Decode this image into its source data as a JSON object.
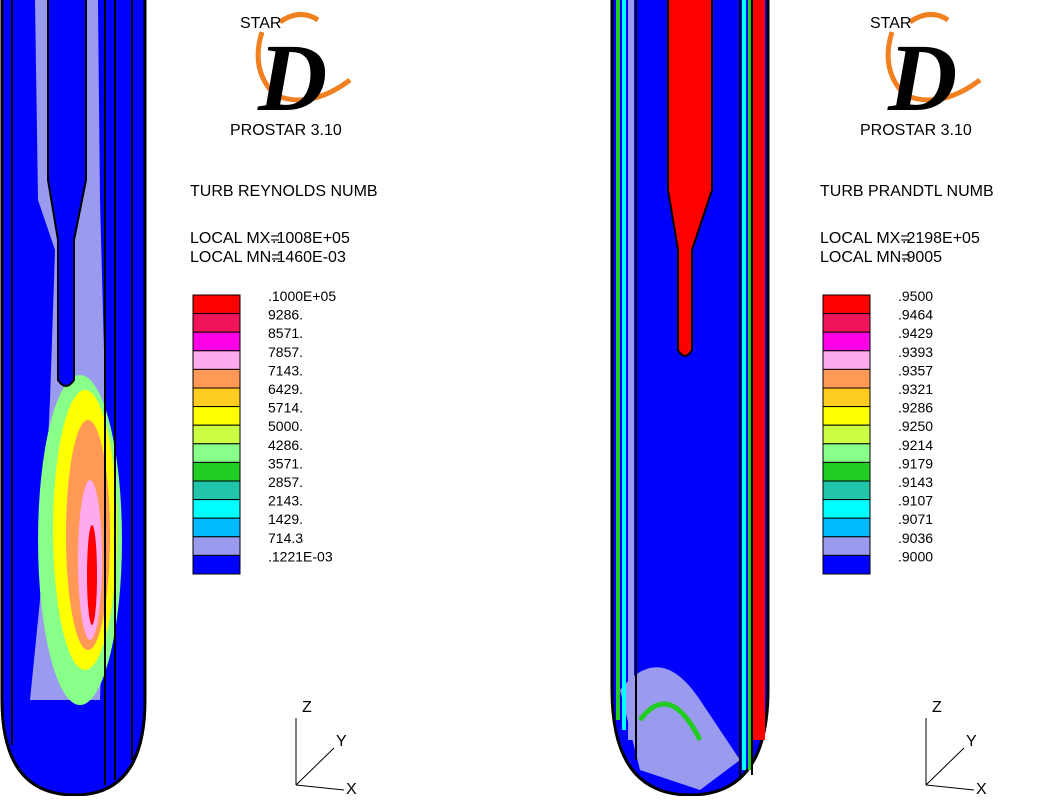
{
  "legend_colors": [
    "#ff0000",
    "#f0145a",
    "#ff00e6",
    "#ffaaee",
    "#ff9955",
    "#ffcc22",
    "#ffff00",
    "#ccff44",
    "#88ff88",
    "#22cc22",
    "#22c4aa",
    "#00ffff",
    "#00bbff",
    "#9a9aee",
    "#0000ff"
  ],
  "panels": [
    {
      "logo_top": "STAR",
      "logo_letter": "D",
      "version": "PROSTAR 3.10",
      "quantity": "TURB REYNOLDS NUMB",
      "max_label": "LOCAL MX=",
      "max_value": ".1008E+05",
      "min_label": "LOCAL MN=",
      "min_value": ".1460E-03",
      "legend": [
        ".1000E+05",
        "9286.",
        "8571.",
        "7857.",
        "7143.",
        "6429.",
        "5714.",
        "5000.",
        "4286.",
        "3571.",
        "2857.",
        "2143.",
        "1429.",
        "714.3",
        ".1221E-03"
      ],
      "axes": {
        "z": "Z",
        "y": "Y",
        "x": "X"
      }
    },
    {
      "logo_top": "STAR",
      "logo_letter": "D",
      "version": "PROSTAR 3.10",
      "quantity": "TURB PRANDTL NUMB",
      "max_label": "LOCAL MX=",
      "max_value": ".2198E+05",
      "min_label": "LOCAL MN=",
      "min_value": ".9005",
      "legend": [
        ".9500",
        ".9464",
        ".9429",
        ".9393",
        ".9357",
        ".9321",
        ".9286",
        ".9250",
        ".9214",
        ".9179",
        ".9143",
        ".9107",
        ".9071",
        ".9036",
        ".9000"
      ],
      "axes": {
        "z": "Z",
        "y": "Y",
        "x": "X"
      }
    }
  ]
}
